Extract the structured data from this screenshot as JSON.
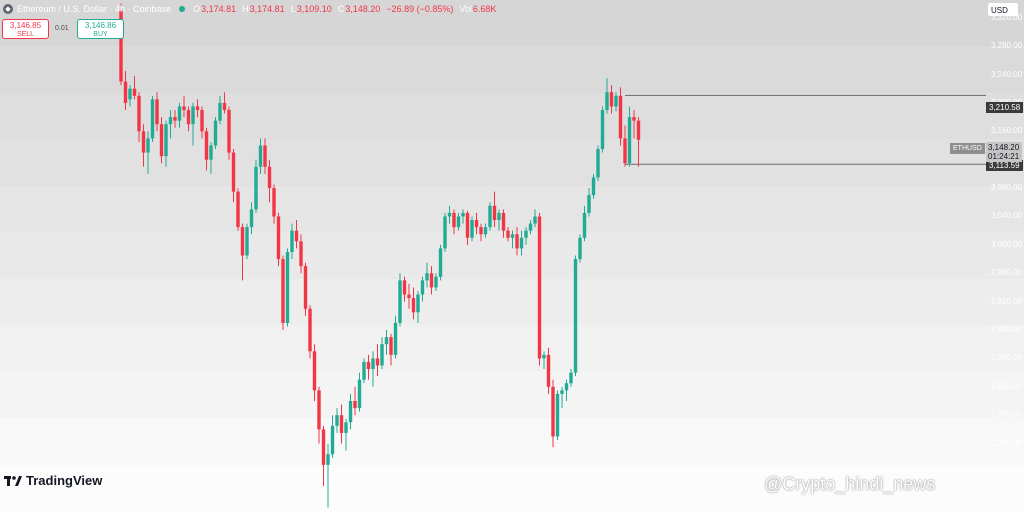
{
  "header": {
    "symbol": "Ethereum / U.S. Dollar · 4h · Coinbase",
    "open_label": "O",
    "open": "3,174.81",
    "high_label": "H",
    "high": "3,174.81",
    "low_label": "L",
    "low": "3,109.10",
    "close_label": "C",
    "close": "3,148.20",
    "change": "−26.89 (−0.85%)",
    "vol_label": "Vol",
    "vol": "6.68K"
  },
  "trade": {
    "sell_price": "3,146.85",
    "sell_label": "SELL",
    "spread": "0.01",
    "buy_price": "3,146.86",
    "buy_label": "BUY"
  },
  "currency": "USD",
  "markers": {
    "level_high": "3,210.58",
    "level_low": "3,113.59",
    "symbol": "ETHUSD",
    "last_price": "3,148.20",
    "countdown": "01:24:21"
  },
  "brand": "TradingView",
  "watermark": "@Crypto_hindi_news",
  "colors": {
    "up": "#22ab94",
    "down": "#f23645",
    "grid_text": "#ffffff"
  },
  "chart_data": {
    "type": "candlestick",
    "ylim": [
      2625,
      3345
    ],
    "y_ticks": [
      {
        "value": 3320,
        "label": "3,320.00"
      },
      {
        "value": 3280,
        "label": "3,280.00"
      },
      {
        "value": 3240,
        "label": "3,240.00"
      },
      {
        "value": 3200,
        "label": "3,200.00"
      },
      {
        "value": 3160,
        "label": "3,160.00"
      },
      {
        "value": 3080,
        "label": "3,080.00"
      },
      {
        "value": 3040,
        "label": "3,040.00"
      },
      {
        "value": 3000,
        "label": "3,000.00"
      },
      {
        "value": 2960,
        "label": "2,960.00"
      },
      {
        "value": 2920,
        "label": "2,920.00"
      },
      {
        "value": 2880,
        "label": "2,880.00"
      },
      {
        "value": 2840,
        "label": "2,840.00"
      },
      {
        "value": 2800,
        "label": "2,800.00"
      },
      {
        "value": 2760,
        "label": "2,760.00"
      },
      {
        "value": 2720,
        "label": "2,720.00"
      },
      {
        "value": 2680,
        "label": "2,680.00"
      }
    ],
    "horizontal_levels": [
      3210.58,
      3113.59
    ],
    "last_price": 3148.2,
    "candles": [
      [
        3330,
        3340,
        3225,
        3230
      ],
      [
        3230,
        3245,
        3190,
        3200
      ],
      [
        3205,
        3225,
        3195,
        3220
      ],
      [
        3220,
        3238,
        3205,
        3210
      ],
      [
        3210,
        3215,
        3145,
        3160
      ],
      [
        3160,
        3170,
        3110,
        3130
      ],
      [
        3130,
        3160,
        3100,
        3150
      ],
      [
        3150,
        3210,
        3145,
        3205
      ],
      [
        3205,
        3215,
        3160,
        3170
      ],
      [
        3170,
        3180,
        3115,
        3125
      ],
      [
        3125,
        3175,
        3110,
        3170
      ],
      [
        3170,
        3190,
        3150,
        3180
      ],
      [
        3180,
        3190,
        3165,
        3175
      ],
      [
        3175,
        3200,
        3165,
        3195
      ],
      [
        3195,
        3210,
        3180,
        3190
      ],
      [
        3190,
        3195,
        3160,
        3170
      ],
      [
        3170,
        3200,
        3140,
        3195
      ],
      [
        3195,
        3205,
        3180,
        3190
      ],
      [
        3190,
        3195,
        3150,
        3160
      ],
      [
        3160,
        3165,
        3105,
        3120
      ],
      [
        3120,
        3145,
        3100,
        3140
      ],
      [
        3140,
        3180,
        3135,
        3175
      ],
      [
        3175,
        3210,
        3170,
        3200
      ],
      [
        3200,
        3215,
        3185,
        3190
      ],
      [
        3190,
        3195,
        3120,
        3130
      ],
      [
        3130,
        3135,
        3060,
        3075
      ],
      [
        3075,
        3080,
        3020,
        3025
      ],
      [
        3025,
        3030,
        2950,
        2985
      ],
      [
        2985,
        3030,
        2980,
        3025
      ],
      [
        3025,
        3060,
        3015,
        3050
      ],
      [
        3050,
        3120,
        3045,
        3110
      ],
      [
        3110,
        3150,
        3100,
        3140
      ],
      [
        3140,
        3150,
        3100,
        3110
      ],
      [
        3110,
        3120,
        3060,
        3080
      ],
      [
        3080,
        3085,
        3030,
        3040
      ],
      [
        3040,
        3045,
        2970,
        2980
      ],
      [
        2980,
        2985,
        2880,
        2890
      ],
      [
        2890,
        2995,
        2885,
        2990
      ],
      [
        2990,
        3030,
        2980,
        3020
      ],
      [
        3020,
        3035,
        2995,
        3005
      ],
      [
        3005,
        3015,
        2960,
        2970
      ],
      [
        2970,
        2975,
        2900,
        2910
      ],
      [
        2910,
        2915,
        2840,
        2850
      ],
      [
        2850,
        2860,
        2780,
        2795
      ],
      [
        2795,
        2800,
        2720,
        2740
      ],
      [
        2740,
        2745,
        2660,
        2690
      ],
      [
        2690,
        2720,
        2630,
        2705
      ],
      [
        2705,
        2760,
        2700,
        2745
      ],
      [
        2745,
        2770,
        2735,
        2760
      ],
      [
        2760,
        2775,
        2720,
        2735
      ],
      [
        2735,
        2755,
        2710,
        2750
      ],
      [
        2750,
        2790,
        2740,
        2780
      ],
      [
        2780,
        2800,
        2760,
        2770
      ],
      [
        2770,
        2820,
        2765,
        2810
      ],
      [
        2810,
        2840,
        2805,
        2835
      ],
      [
        2835,
        2845,
        2810,
        2825
      ],
      [
        2825,
        2850,
        2800,
        2840
      ],
      [
        2840,
        2860,
        2815,
        2830
      ],
      [
        2830,
        2870,
        2825,
        2860
      ],
      [
        2860,
        2880,
        2845,
        2870
      ],
      [
        2870,
        2875,
        2830,
        2845
      ],
      [
        2845,
        2900,
        2840,
        2890
      ],
      [
        2890,
        2960,
        2885,
        2950
      ],
      [
        2950,
        2955,
        2920,
        2930
      ],
      [
        2930,
        2945,
        2910,
        2925
      ],
      [
        2925,
        2940,
        2895,
        2905
      ],
      [
        2905,
        2935,
        2890,
        2930
      ],
      [
        2930,
        2955,
        2920,
        2950
      ],
      [
        2950,
        2975,
        2940,
        2960
      ],
      [
        2960,
        2970,
        2930,
        2940
      ],
      [
        2940,
        2960,
        2935,
        2955
      ],
      [
        2955,
        3000,
        2950,
        2995
      ],
      [
        2995,
        3045,
        2990,
        3040
      ],
      [
        3040,
        3055,
        3030,
        3045
      ],
      [
        3045,
        3050,
        3015,
        3025
      ],
      [
        3025,
        3045,
        3020,
        3040
      ],
      [
        3040,
        3050,
        3030,
        3045
      ],
      [
        3045,
        3048,
        3000,
        3010
      ],
      [
        3010,
        3040,
        3005,
        3035
      ],
      [
        3035,
        3045,
        3015,
        3025
      ],
      [
        3025,
        3030,
        3005,
        3015
      ],
      [
        3015,
        3030,
        3010,
        3025
      ],
      [
        3025,
        3060,
        3020,
        3055
      ],
      [
        3055,
        3075,
        3025,
        3035
      ],
      [
        3035,
        3050,
        3020,
        3045
      ],
      [
        3045,
        3050,
        3010,
        3020
      ],
      [
        3020,
        3025,
        3005,
        3010
      ],
      [
        3010,
        3020,
        2995,
        3015
      ],
      [
        3015,
        3025,
        2985,
        2995
      ],
      [
        2995,
        3020,
        2985,
        3010
      ],
      [
        3010,
        3025,
        3000,
        3020
      ],
      [
        3020,
        3035,
        3015,
        3030
      ],
      [
        3030,
        3050,
        3025,
        3040
      ],
      [
        3040,
        3045,
        2830,
        2840
      ],
      [
        2840,
        2850,
        2825,
        2845
      ],
      [
        2845,
        2855,
        2790,
        2800
      ],
      [
        2800,
        2810,
        2715,
        2730
      ],
      [
        2730,
        2795,
        2725,
        2790
      ],
      [
        2790,
        2800,
        2770,
        2795
      ],
      [
        2795,
        2810,
        2780,
        2805
      ],
      [
        2805,
        2825,
        2800,
        2820
      ],
      [
        2820,
        2985,
        2815,
        2980
      ],
      [
        2980,
        3015,
        2975,
        3010
      ],
      [
        3010,
        3055,
        3005,
        3045
      ],
      [
        3045,
        3080,
        3040,
        3070
      ],
      [
        3070,
        3100,
        3065,
        3095
      ],
      [
        3095,
        3140,
        3090,
        3135
      ],
      [
        3135,
        3195,
        3130,
        3190
      ],
      [
        3190,
        3235,
        3185,
        3215
      ],
      [
        3215,
        3225,
        3185,
        3195
      ],
      [
        3195,
        3215,
        3188,
        3210
      ],
      [
        3210,
        3222,
        3140,
        3150
      ],
      [
        3150,
        3168,
        3110,
        3115
      ],
      [
        3115,
        3195,
        3110,
        3180
      ],
      [
        3180,
        3190,
        3150,
        3175
      ],
      [
        3175,
        3180,
        3110,
        3148
      ]
    ]
  }
}
